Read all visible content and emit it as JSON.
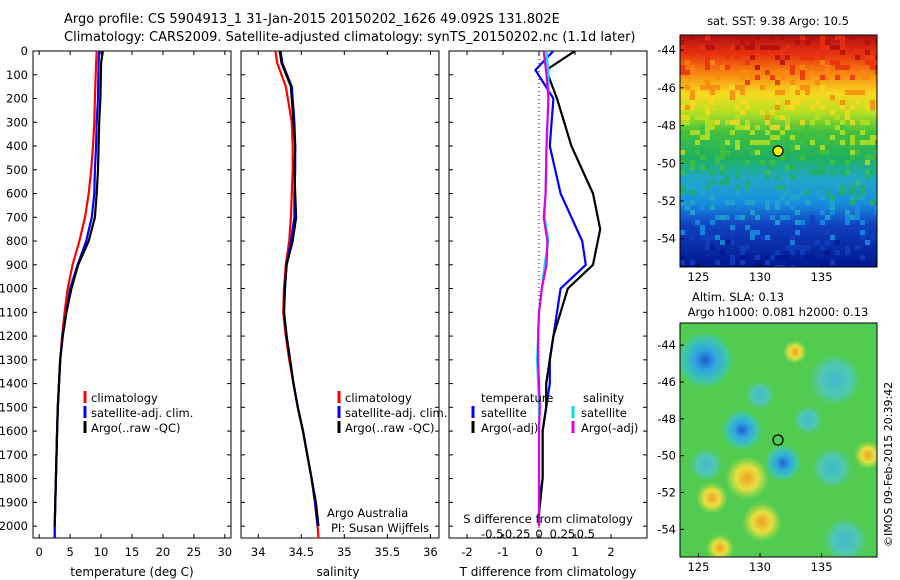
{
  "header": {
    "line1": "Argo profile: CS 5904913_1 31-Jan-2015 20150202_1626 49.092S 131.802E",
    "line2": "Climatology: CARS2009. Satellite-adjusted climatology: synTS_20150202.nc (1.1d later)"
  },
  "credits": {
    "org": "Argo Australia",
    "pi": "PI: Susan Wijffels",
    "imos": "©IMOS 09-Feb-2015 20:39:42"
  },
  "colors": {
    "climatology": "#ff0000",
    "satellite": "#0000ff",
    "argo": "#000000",
    "sal_satellite": "#00e0f0",
    "sal_argo": "#e000e0"
  },
  "chart_data": [
    {
      "type": "line",
      "name": "temperature_panel",
      "xlabel": "temperature (deg C)",
      "ylabel": "",
      "xlim": [
        -1,
        31
      ],
      "ylim": [
        2050,
        0
      ],
      "xticks": [
        0,
        5,
        10,
        15,
        20,
        25,
        30
      ],
      "yticks": [
        0,
        100,
        200,
        300,
        400,
        500,
        600,
        700,
        800,
        900,
        1000,
        1100,
        1200,
        1300,
        1400,
        1500,
        1600,
        1700,
        1800,
        1900,
        2000
      ],
      "legend": [
        "climatology",
        "satellite-adj. clim.",
        "Argo(..raw -QC)"
      ],
      "legend_position": "lower-right",
      "series": [
        {
          "name": "climatology",
          "color": "#ff0000",
          "x": [
            9.3,
            9.2,
            9.0,
            8.9,
            8.7,
            8.4,
            8.0,
            7.4,
            6.5,
            5.4,
            4.6,
            4.1,
            3.7,
            3.4,
            3.2,
            3.0,
            2.9,
            2.8,
            2.7,
            2.6,
            2.5,
            2.5
          ],
          "y": [
            0,
            50,
            200,
            300,
            400,
            500,
            600,
            700,
            800,
            900,
            1000,
            1100,
            1200,
            1300,
            1400,
            1500,
            1600,
            1700,
            1800,
            1900,
            2000,
            2050
          ]
        },
        {
          "name": "satellite-adj. clim.",
          "color": "#0000ff",
          "x": [
            9.7,
            9.6,
            9.5,
            9.3,
            9.2,
            9.0,
            8.9,
            8.5,
            7.6,
            6.2,
            5.0,
            4.4,
            3.8,
            3.4,
            3.2,
            3.0,
            2.9,
            2.8,
            2.7,
            2.6,
            2.5,
            2.5
          ],
          "y": [
            0,
            50,
            200,
            300,
            400,
            500,
            600,
            700,
            800,
            900,
            1000,
            1100,
            1200,
            1300,
            1400,
            1500,
            1600,
            1700,
            1800,
            1900,
            2000,
            2050
          ]
        },
        {
          "name": "Argo(..raw -QC)",
          "color": "#000000",
          "x": [
            10.3,
            10.0,
            9.9,
            9.7,
            9.6,
            9.5,
            9.3,
            9.0,
            8.0,
            6.3,
            5.2,
            4.4,
            3.8,
            3.4,
            3.2,
            3.0,
            2.9,
            2.8,
            2.7,
            2.6,
            2.5
          ],
          "y": [
            0,
            50,
            200,
            300,
            400,
            500,
            600,
            700,
            800,
            900,
            1000,
            1100,
            1200,
            1300,
            1400,
            1500,
            1600,
            1700,
            1800,
            1900,
            2000
          ]
        }
      ]
    },
    {
      "type": "line",
      "name": "salinity_panel",
      "xlabel": "salinity",
      "ylabel": "",
      "xlim": [
        33.8,
        36.1
      ],
      "ylim": [
        2050,
        0
      ],
      "xticks": [
        34,
        34.5,
        35,
        35.5,
        36
      ],
      "legend": [
        "climatology",
        "satellite-adj. clim.",
        "Argo(..raw -QC)"
      ],
      "legend_position": "lower-right",
      "series": [
        {
          "name": "climatology",
          "color": "#ff0000",
          "x": [
            34.2,
            34.22,
            34.32,
            34.39,
            34.4,
            34.4,
            34.39,
            34.38,
            34.36,
            34.32,
            34.3,
            34.29,
            34.32,
            34.36,
            34.41,
            34.46,
            34.52,
            34.57,
            34.62,
            34.66,
            34.69,
            34.7
          ],
          "y": [
            0,
            50,
            150,
            300,
            400,
            500,
            600,
            700,
            800,
            900,
            1000,
            1100,
            1200,
            1300,
            1400,
            1500,
            1600,
            1700,
            1800,
            1900,
            2000,
            2050
          ]
        },
        {
          "name": "satellite-adj. clim.",
          "color": "#0000ff",
          "x": [
            34.26,
            34.28,
            34.39,
            34.42,
            34.43,
            34.43,
            34.42,
            34.42,
            34.38,
            34.33,
            34.31,
            34.3,
            34.33,
            34.37,
            34.41,
            34.46,
            34.52,
            34.57,
            34.62,
            34.66,
            34.69
          ],
          "y": [
            0,
            50,
            150,
            300,
            400,
            500,
            600,
            700,
            800,
            900,
            1000,
            1100,
            1200,
            1300,
            1400,
            1500,
            1600,
            1700,
            1800,
            1900,
            2000
          ]
        },
        {
          "name": "Argo(..raw -QC)",
          "color": "#000000",
          "x": [
            34.25,
            34.27,
            34.38,
            34.41,
            34.43,
            34.42,
            34.43,
            34.44,
            34.4,
            34.33,
            34.31,
            34.3,
            34.33,
            34.37,
            34.41,
            34.46,
            34.52,
            34.57,
            34.62,
            34.67,
            34.7
          ],
          "y": [
            0,
            50,
            150,
            300,
            400,
            500,
            600,
            700,
            800,
            900,
            1000,
            1100,
            1200,
            1300,
            1400,
            1500,
            1600,
            1700,
            1800,
            1900,
            2000
          ]
        }
      ]
    },
    {
      "type": "line",
      "name": "difference_panel",
      "xlabel": "T difference from climatology",
      "x2label": "S difference from climatology",
      "xlim": [
        -2.5,
        3
      ],
      "ylim": [
        2050,
        0
      ],
      "xticks": [
        -2,
        -1,
        0,
        1,
        2
      ],
      "x2ticks": [
        -0.5,
        -0.25,
        0,
        0.25,
        0.5
      ],
      "x2tick_labels": [
        "-0.5",
        "-0.25",
        "0",
        "0.25",
        "0.5"
      ],
      "legend_groups": [
        {
          "title": "temperature",
          "entries": [
            "satellite",
            "Argo(-adj)"
          ]
        },
        {
          "title": "salinity",
          "entries": [
            "satellite",
            "Argo(-adj)"
          ]
        }
      ],
      "legend_position": "lower-center",
      "series": [
        {
          "name": "temperature satellite",
          "color": "#0000ff",
          "x": [
            0.4,
            -0.1,
            0.4,
            0.3,
            0.6,
            1.2,
            1.3,
            0.6,
            0.5,
            0.4,
            0.3,
            0.3,
            0.2,
            0.1,
            0.1,
            0.1,
            0.0,
            0.0
          ],
          "y": [
            0,
            80,
            200,
            400,
            600,
            800,
            900,
            1000,
            1100,
            1200,
            1300,
            1400,
            1500,
            1600,
            1700,
            1800,
            1900,
            2000
          ]
        },
        {
          "name": "temperature Argo(-adj)",
          "color": "#000000",
          "x": [
            1.0,
            0.2,
            0.5,
            0.9,
            1.5,
            1.7,
            1.5,
            0.8,
            0.6,
            0.4,
            0.3,
            0.2,
            0.2,
            0.1,
            0.1,
            0.1,
            0.0
          ],
          "y": [
            0,
            80,
            200,
            400,
            600,
            750,
            900,
            1000,
            1100,
            1200,
            1300,
            1400,
            1500,
            1600,
            1700,
            1800,
            1950
          ]
        },
        {
          "name": "salinity satellite",
          "color": "#00e0f0",
          "x": [
            0.08,
            0.1,
            0.1,
            0.08,
            0.07,
            0.06,
            0.1,
            0.06,
            0.03,
            0.0,
            -0.01,
            -0.02,
            -0.01,
            0.0,
            0.0,
            0.0,
            0.0
          ],
          "y": [
            0,
            100,
            200,
            400,
            600,
            700,
            800,
            900,
            1000,
            1100,
            1200,
            1300,
            1400,
            1500,
            1600,
            1800,
            2000
          ]
        },
        {
          "name": "salinity Argo(-adj)",
          "color": "#e000e0",
          "x": [
            0.05,
            0.08,
            0.1,
            0.08,
            0.07,
            0.05,
            0.09,
            0.08,
            0.03,
            0.0,
            -0.01,
            -0.01,
            0.0,
            0.01,
            0.0,
            0.0,
            0.0
          ],
          "y": [
            0,
            100,
            200,
            400,
            600,
            700,
            800,
            900,
            1000,
            1100,
            1200,
            1300,
            1400,
            1500,
            1600,
            1800,
            2000
          ]
        }
      ]
    },
    {
      "type": "heatmap",
      "name": "sst_map",
      "title": "sat. SST: 9.38  Argo: 10.5",
      "xticks": [
        125,
        130,
        135
      ],
      "yticks": [
        -44,
        -46,
        -48,
        -50,
        -52,
        -54
      ],
      "xlim": [
        123.5,
        139.5
      ],
      "ylim": [
        -55.5,
        -43.2
      ],
      "float_position": {
        "lon": 131.802,
        "lat": -49.092
      }
    },
    {
      "type": "heatmap",
      "name": "sla_map",
      "title_line1": "Altim. SLA: 0.13",
      "title_line2": "Argo h1000: 0.081 h2000: 0.13",
      "xticks": [
        125,
        130,
        135
      ],
      "yticks": [
        -44,
        -46,
        -48,
        -50,
        -52,
        -54
      ],
      "xlim": [
        123.5,
        139.5
      ],
      "ylim": [
        -55.5,
        -42.8
      ],
      "float_position": {
        "lon": 131.802,
        "lat": -49.092
      }
    }
  ]
}
